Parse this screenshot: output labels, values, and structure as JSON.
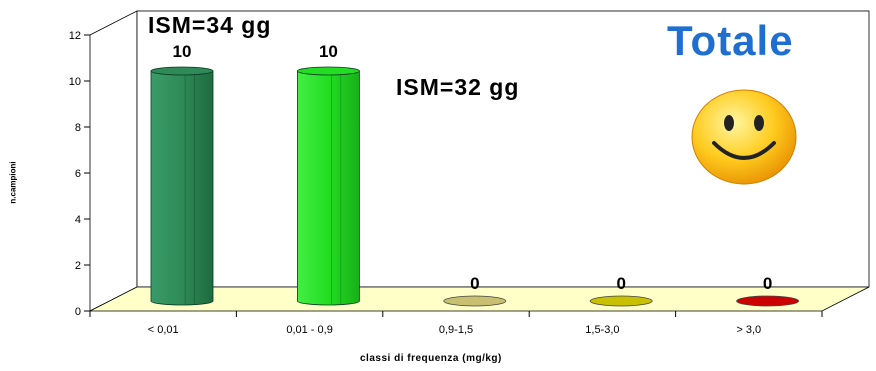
{
  "chart_data": {
    "type": "bar",
    "title": "Totale",
    "xlabel": "classi di frequenza (mg/kg)",
    "ylabel": "n.campioni",
    "categories": [
      "< 0,01",
      "0,01 - 0,9",
      "0,9-1,5",
      "1,5-3,0",
      "> 3,0"
    ],
    "values": [
      10,
      10,
      0,
      0,
      0
    ],
    "data_labels": [
      "10",
      "10",
      "0",
      "0",
      "0"
    ],
    "bar_colors": [
      "#2e8b57",
      "#22dd22",
      "#c8c070",
      "#c8c000",
      "#cc0000"
    ],
    "ylim": [
      0,
      12
    ],
    "yticks": [
      "0",
      "2",
      "4",
      "6",
      "8",
      "10",
      "12"
    ],
    "grid": true,
    "floor_color": "#ffffc8",
    "annotations": [
      "ISM=34 gg",
      "ISM=32 gg"
    ],
    "title_color": "#1e6fd0"
  }
}
